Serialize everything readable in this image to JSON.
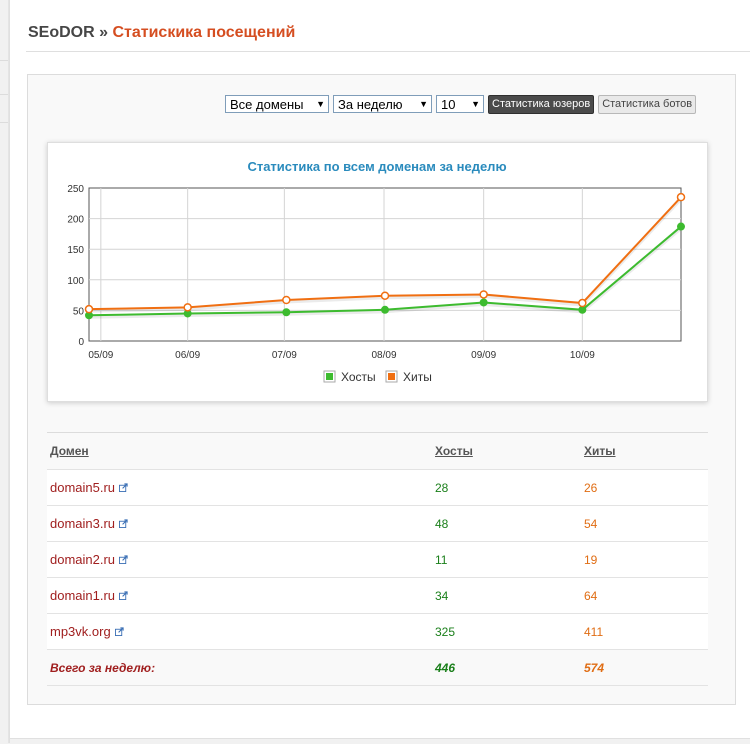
{
  "header": {
    "brand": "SEoDOR",
    "separator": " » ",
    "title": "Статискика посещений"
  },
  "filters": {
    "domain_select": "Все домены",
    "period_select": "За неделю",
    "count_select": "10",
    "users_button": "Статистика юзеров",
    "bots_button": "Статистика ботов"
  },
  "colors": {
    "hosts": "#3dbb2f",
    "hits": "#f06f12",
    "chart_title": "#2a8bbd",
    "domain_link": "#a01f1f"
  },
  "chart_data": {
    "type": "line",
    "title": "Статистика по всем доменам за неделю",
    "x_ticks": [
      "05/09",
      "06/09",
      "07/09",
      "08/09",
      "09/09",
      "10/09"
    ],
    "y_ticks": [
      "0",
      "50",
      "100",
      "150",
      "200",
      "250"
    ],
    "ylim": [
      0,
      250
    ],
    "grid": true,
    "legend_placement": "bottom-center",
    "series": [
      {
        "name": "Хосты",
        "color": "#3dbb2f",
        "x": [
          0,
          1,
          2,
          3,
          4,
          5,
          6
        ],
        "values": [
          42,
          45,
          47,
          51,
          63,
          51,
          187
        ]
      },
      {
        "name": "Хиты",
        "color": "#f06f12",
        "x": [
          0,
          1,
          2,
          3,
          4,
          5,
          6
        ],
        "values": [
          52,
          55,
          67,
          74,
          76,
          62,
          235
        ]
      }
    ]
  },
  "table": {
    "headers": {
      "domain": "Домен",
      "hosts": "Хосты",
      "hits": "Хиты"
    },
    "rows": [
      {
        "domain": "domain5.ru",
        "hosts": "28",
        "hits": "26"
      },
      {
        "domain": "domain3.ru",
        "hosts": "48",
        "hits": "54"
      },
      {
        "domain": "domain2.ru",
        "hosts": "11",
        "hits": "19"
      },
      {
        "domain": "domain1.ru",
        "hosts": "34",
        "hits": "64"
      },
      {
        "domain": "mp3vk.org",
        "hosts": "325",
        "hits": "411"
      }
    ],
    "total": {
      "label": "Всего за неделю:",
      "hosts": "446",
      "hits": "574"
    }
  }
}
